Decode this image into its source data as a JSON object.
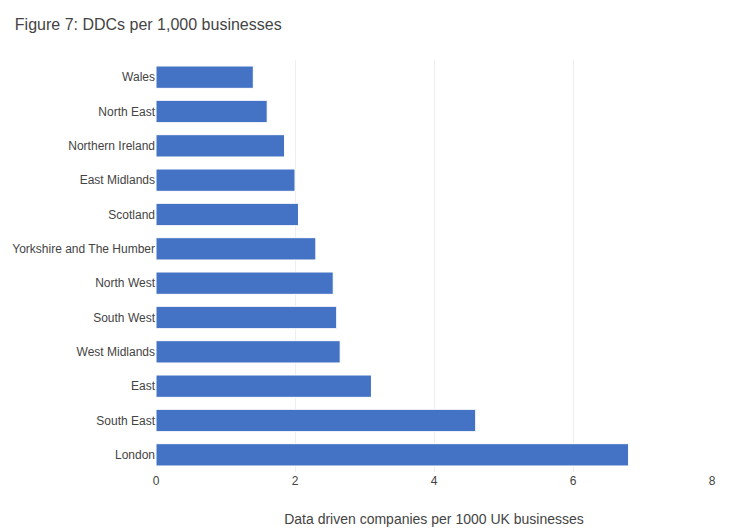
{
  "chart_data": {
    "type": "bar",
    "orientation": "horizontal",
    "title": "Figure 7: DDCs per 1,000 businesses",
    "xlabel": "Data driven companies per 1000 UK businesses",
    "categories": [
      "Wales",
      "North East",
      "Northern Ireland",
      "East Midlands",
      "Scotland",
      "Yorkshire and The Humber",
      "North West",
      "South West",
      "West Midlands",
      "East",
      "South East",
      "London"
    ],
    "values": [
      1.4,
      1.6,
      1.85,
      2.0,
      2.05,
      2.3,
      2.55,
      2.6,
      2.65,
      3.1,
      4.6,
      6.8
    ],
    "color": "#4472C4",
    "xlim": [
      0,
      8
    ],
    "xticks": [
      0,
      2,
      4,
      6,
      8
    ],
    "grid": true
  }
}
